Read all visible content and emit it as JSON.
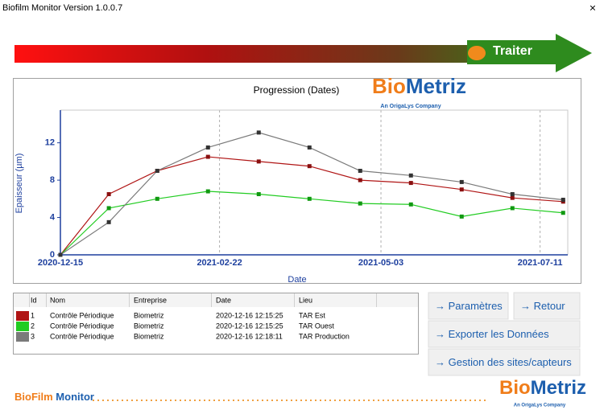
{
  "window": {
    "title": "Biofilm Monitor Version 1.0.0.7",
    "close": "×"
  },
  "banner": {
    "action": "Traiter"
  },
  "logo": {
    "parts": [
      "Bio",
      "Metriz"
    ],
    "tagline": "An OrigaLys Company"
  },
  "chart_data": {
    "type": "line",
    "title": "Progression (Dates)",
    "x_label": "Date",
    "y_label": "Epaisseur (µm)",
    "x": [
      "2020-12-15",
      "2021-01-05",
      "2021-01-26",
      "2021-02-17",
      "2021-03-11",
      "2021-04-02",
      "2021-04-24",
      "2021-05-16",
      "2021-06-07",
      "2021-06-29",
      "2021-07-21"
    ],
    "series": [
      {
        "color": "#b01515",
        "values": [
          0,
          6.5,
          9.0,
          10.5,
          10.0,
          9.5,
          8.0,
          7.7,
          7.0,
          6.1,
          5.7
        ]
      },
      {
        "color": "#22cc22",
        "values": [
          0,
          5.0,
          6.0,
          6.8,
          6.5,
          6.0,
          5.5,
          5.4,
          4.1,
          5.0,
          4.5
        ]
      },
      {
        "color": "#7a7a7a",
        "values": [
          0,
          3.5,
          9.0,
          11.5,
          13.1,
          11.5,
          9.0,
          8.5,
          7.8,
          6.5,
          5.9
        ]
      }
    ],
    "xlim": [
      "2020-12-15",
      "2021-07-23"
    ],
    "xticks": [
      "2020-12-15",
      "2021-02-22",
      "2021-05-03",
      "2021-07-11"
    ],
    "ylim": [
      0,
      15.5
    ],
    "yticks": [
      0,
      4,
      8,
      12
    ],
    "grid": true
  },
  "table": {
    "columns": [
      "Id",
      "Nom",
      "Entreprise",
      "Date",
      "Lieu"
    ],
    "rows": [
      [
        "1",
        "Contrôle Périodique",
        "Biometriz",
        "2020-12-16 12:15:25",
        "TAR Est"
      ],
      [
        "2",
        "Contrôle Périodique",
        "Biometriz",
        "2020-12-16 12:15:25",
        "TAR Ouest"
      ],
      [
        "3",
        "Contrôle Périodique",
        "Biometriz",
        "2020-12-16 12:18:11",
        "TAR Production"
      ]
    ]
  },
  "buttons": [
    "→ Paramètres",
    "→ Retour",
    "→ Exporter les Données",
    "→ Gestion des sites/capteurs"
  ],
  "footer": {
    "parts": [
      "BioFilm",
      "Monitor"
    ]
  }
}
